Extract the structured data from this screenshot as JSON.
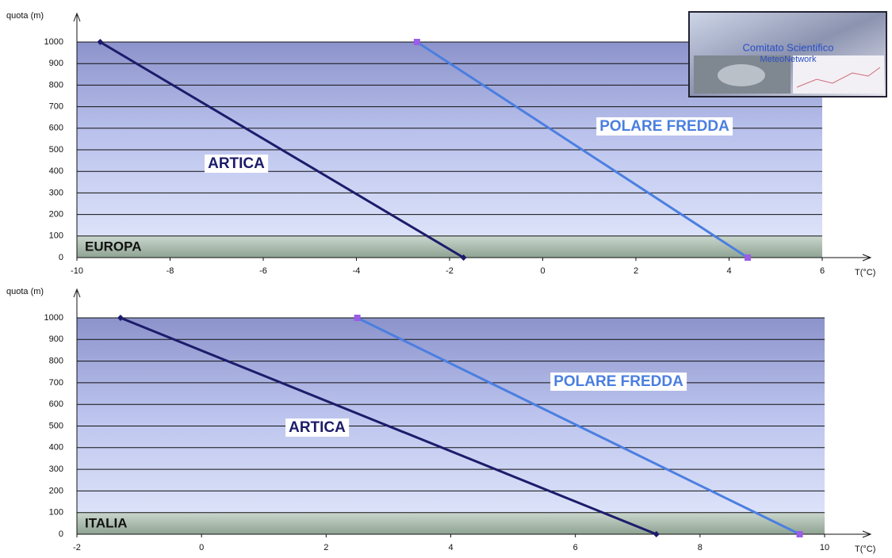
{
  "logo": {
    "lines": [
      "Comitato Scientifico",
      "MeteoNetwork"
    ]
  },
  "chart_data": [
    {
      "type": "line",
      "region": "EUROPA",
      "y_label": "quota (m)",
      "x_label": "T(°C)",
      "xlim": [
        -10,
        6
      ],
      "xticks": [
        -10,
        -8,
        -6,
        -4,
        -2,
        0,
        2,
        4,
        6
      ],
      "ylim": [
        0,
        1000
      ],
      "yticks": [
        0,
        100,
        200,
        300,
        400,
        500,
        600,
        700,
        800,
        900,
        1000
      ],
      "grid": true,
      "series": [
        {
          "name": "ARTICA",
          "color": "#1c1c6b",
          "marker_color": "#1c1c6b",
          "x": [
            -9.5,
            -1.7
          ],
          "values": [
            1000,
            0
          ]
        },
        {
          "name": "POLARE FREDDA",
          "color": "#4b7fe0",
          "marker_color": "#9b5de8",
          "x": [
            -2.7,
            4.4
          ],
          "values": [
            1000,
            0
          ]
        }
      ]
    },
    {
      "type": "line",
      "region": "ITALIA",
      "y_label": "quota (m)",
      "x_label": "T(°C)",
      "xlim": [
        -2,
        10
      ],
      "xticks": [
        -2,
        0,
        2,
        4,
        6,
        8,
        10
      ],
      "ylim": [
        0,
        1000
      ],
      "yticks": [
        0,
        100,
        200,
        300,
        400,
        500,
        600,
        700,
        800,
        900,
        1000
      ],
      "grid": true,
      "series": [
        {
          "name": "ARTICA",
          "color": "#1c1c6b",
          "marker_color": "#1c1c6b",
          "x": [
            -1.3,
            7.3
          ],
          "values": [
            1000,
            0
          ]
        },
        {
          "name": "POLARE FREDDA",
          "color": "#4b7fe0",
          "marker_color": "#9b5de8",
          "x": [
            2.5,
            9.6
          ],
          "values": [
            1000,
            0
          ]
        }
      ]
    }
  ]
}
